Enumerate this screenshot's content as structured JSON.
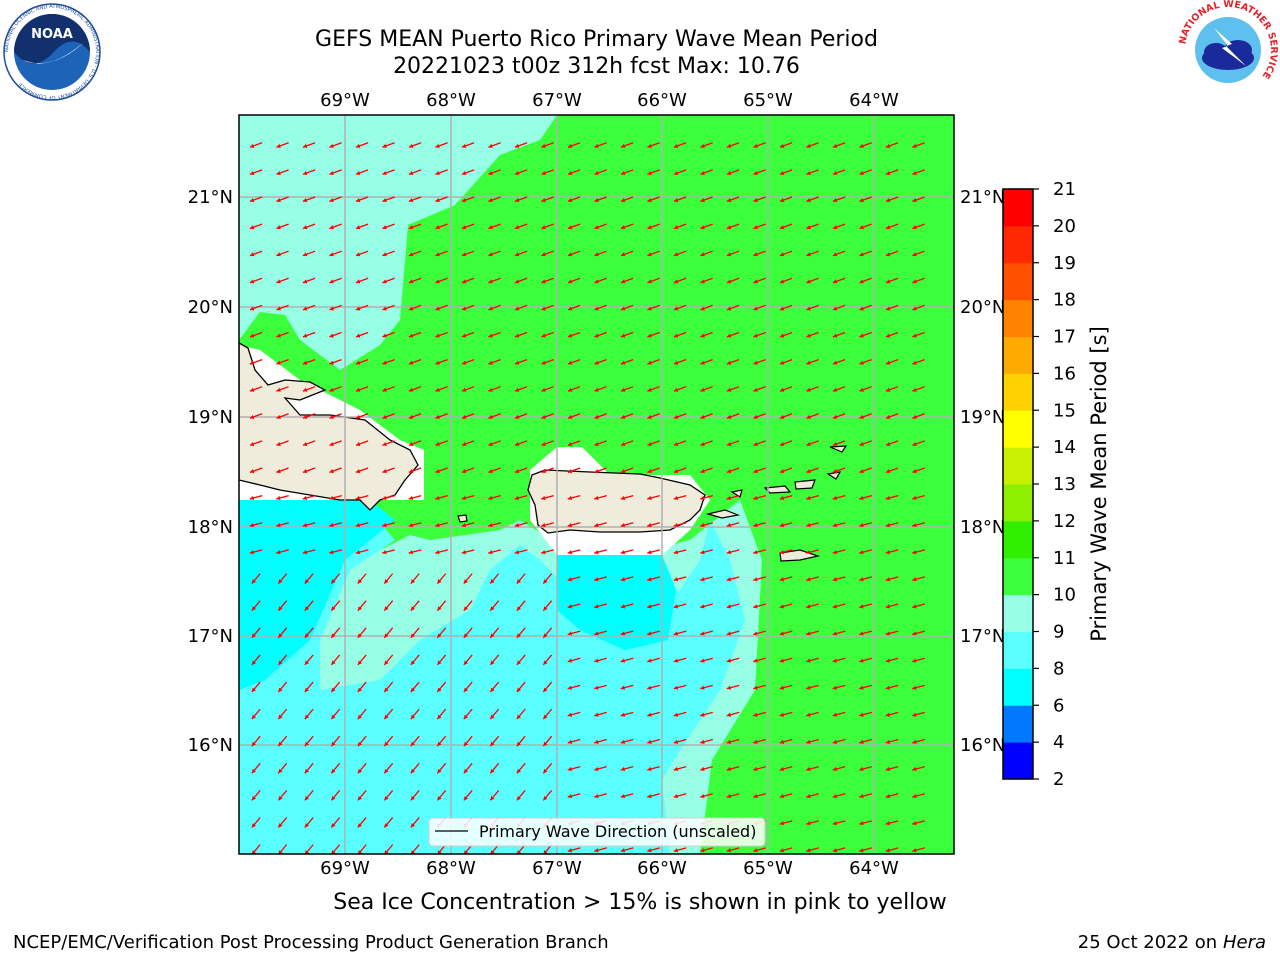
{
  "header": {
    "title_line1": "GEFS MEAN Puerto Rico Primary Wave Mean Period",
    "title_line2": "20221023 t00z 312h fcst   Max: 10.76"
  },
  "logos": {
    "left": {
      "icon": "noaa-logo",
      "text": "NOAA",
      "ring_text": "NATIONAL OCEANIC AND ATMOSPHERIC ADMINISTRATION · U.S. DEPARTMENT OF COMMERCE"
    },
    "right": {
      "icon": "nws-logo",
      "ring_text": "NATIONAL WEATHER SERVICE"
    }
  },
  "map": {
    "lon_labels": [
      "69°W",
      "68°W",
      "67°W",
      "66°W",
      "65°W",
      "64°W"
    ],
    "lat_labels": [
      "21°N",
      "20°N",
      "19°N",
      "18°N",
      "17°N",
      "16°N"
    ],
    "legend_label": "Primary Wave Direction (unscaled)",
    "arrow_color": "#ff0000",
    "land_color": "#efecdc",
    "coast_color": "#000000"
  },
  "colorbar": {
    "label": "Primary Wave Mean Period [s]",
    "ticks": [
      "2",
      "4",
      "6",
      "8",
      "9",
      "10",
      "11",
      "12",
      "13",
      "14",
      "15",
      "16",
      "17",
      "18",
      "19",
      "20",
      "21"
    ],
    "colors": [
      "#0000ff",
      "#0077ff",
      "#00ffff",
      "#5affff",
      "#96ffe6",
      "#3cff3c",
      "#30f000",
      "#8cf000",
      "#c8f000",
      "#ffff00",
      "#ffd200",
      "#ffaa00",
      "#ff8200",
      "#ff5000",
      "#ff2800",
      "#ff0000"
    ]
  },
  "notes": {
    "sea_ice": "Sea Ice Concentration > 15% is shown in pink to yellow"
  },
  "footer": {
    "left": "NCEP/EMC/Verification Post Processing Product Generation Branch",
    "right_date": "25 Oct 2022 on ",
    "right_host": "Hera"
  }
}
